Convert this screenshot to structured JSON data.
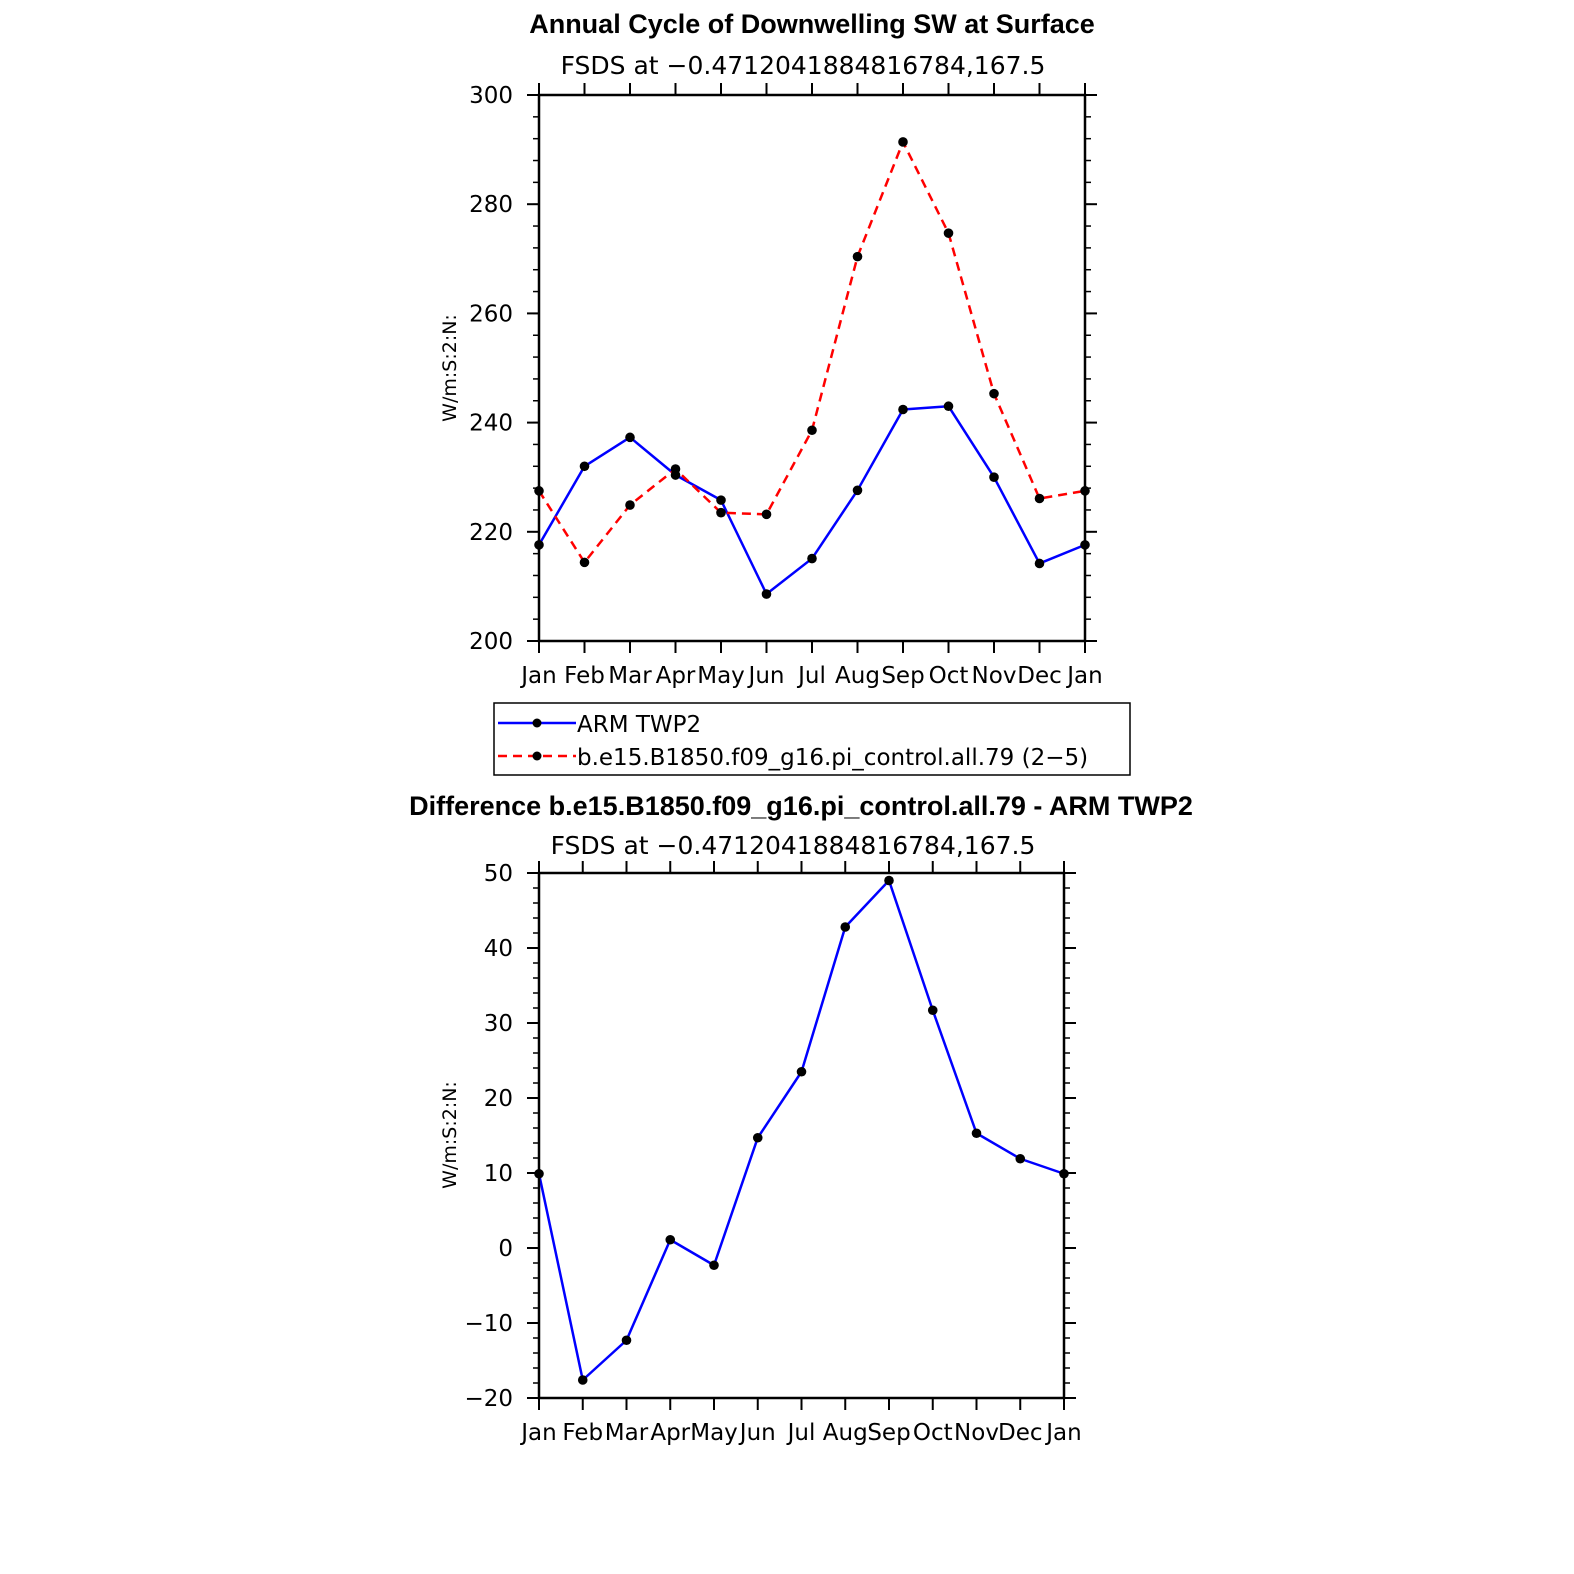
{
  "chart_data": [
    {
      "type": "line",
      "title": "Annual Cycle of Downwelling SW at Surface",
      "subtitle": "FSDS at −0.4712041884816784,167.5",
      "ylabel": "W/m:S:2:N:",
      "xlabel": "",
      "categories": [
        "Jan",
        "Feb",
        "Mar",
        "Apr",
        "May",
        "Jun",
        "Jul",
        "Aug",
        "Sep",
        "Oct",
        "Nov",
        "Dec",
        "Jan"
      ],
      "ylim": [
        200,
        300
      ],
      "yticks": [
        200,
        220,
        240,
        260,
        280,
        300
      ],
      "ytick_labels": [
        "200",
        "220",
        "240",
        "260",
        "280",
        "300"
      ],
      "series": [
        {
          "name": "ARM TWP2",
          "color": "#0000ff",
          "dash": "solid",
          "values": [
            217.6,
            232.0,
            237.3,
            230.4,
            225.8,
            208.6,
            215.1,
            227.6,
            242.4,
            243.0,
            230.0,
            214.2,
            217.6
          ]
        },
        {
          "name": "b.e15.B1850.f09_g16.pi_control.all.79 (2−5)",
          "color": "#ff0000",
          "dash": "dashed",
          "values": [
            227.5,
            214.4,
            224.9,
            231.5,
            223.5,
            223.2,
            238.6,
            270.4,
            291.4,
            274.7,
            245.3,
            226.1,
            227.5
          ]
        }
      ],
      "legend_position": "below"
    },
    {
      "type": "line",
      "title": "Difference b.e15.B1850.f09_g16.pi_control.all.79 - ARM TWP2",
      "subtitle": "FSDS at −0.4712041884816784,167.5",
      "ylabel": "W/m:S:2:N:",
      "xlabel": "",
      "categories": [
        "Jan",
        "Feb",
        "Mar",
        "Apr",
        "May",
        "Jun",
        "Jul",
        "Aug",
        "Sep",
        "Oct",
        "Nov",
        "Dec",
        "Jan"
      ],
      "ylim": [
        -20,
        50
      ],
      "yticks": [
        -20,
        -10,
        0,
        10,
        20,
        30,
        40,
        50
      ],
      "ytick_labels": [
        "−20",
        "−10",
        "0",
        "10",
        "20",
        "30",
        "40",
        "50"
      ],
      "series": [
        {
          "name": "Difference",
          "color": "#0000ff",
          "dash": "solid",
          "values": [
            9.9,
            -17.6,
            -12.3,
            1.1,
            -2.3,
            14.7,
            23.5,
            42.8,
            49.0,
            31.7,
            15.3,
            11.9,
            9.9
          ]
        }
      ]
    }
  ]
}
